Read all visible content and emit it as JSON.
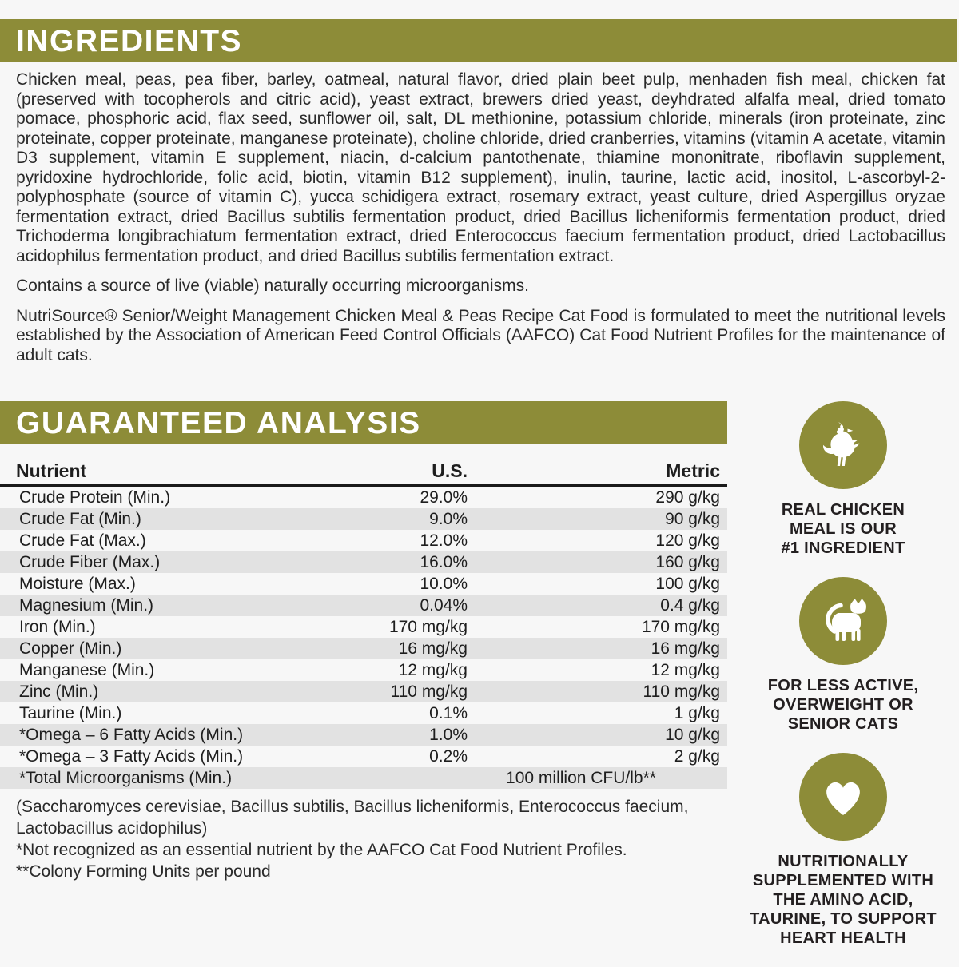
{
  "colors": {
    "accent_olive": "#8d8c38",
    "row_stripe": "#e2e2e2",
    "background": "#f7f7f7",
    "banner_text": "#ffffff",
    "body_text": "#2a2a2a"
  },
  "ingredients": {
    "title": "INGREDIENTS",
    "body": "Chicken meal, peas, pea fiber, barley, oatmeal, natural flavor, dried plain beet pulp, menhaden fish meal, chicken fat (preserved with tocopherols and citric acid), yeast extract, brewers dried yeast, deyhdrated alfalfa meal, dried tomato pomace, phosphoric acid, flax seed, sunflower oil, salt, DL methionine, potassium chloride, minerals (iron proteinate, zinc proteinate, copper proteinate, manganese proteinate), choline chloride, dried cranberries, vitamins (vitamin A acetate, vitamin D3 supplement, vitamin E supplement, niacin, d-calcium pantothenate, thiamine mononitrate, riboflavin supplement, pyridoxine hydrochloride, folic acid, biotin, vitamin B12 supplement), inulin, taurine, lactic acid, inositol, L-ascorbyl-2-polyphosphate (source of vitamin C), yucca schidigera extract, rosemary extract, yeast culture, dried Aspergillus oryzae fermentation extract, dried Bacillus subtilis fermentation product, dried Bacillus licheniformis fermentation product, dried Trichoderma longibrachiatum fermentation extract, dried Enterococcus faecium fermentation product, dried Lactobacillus acidophilus fermentation product, and dried Bacillus subtilis fermentation extract.",
    "contains": "Contains a source of live (viable) naturally occurring microorganisms.",
    "aafco": "NutriSource® Senior/Weight Management Chicken Meal & Peas Recipe Cat Food is formulated to meet the nutritional levels established by the Association of American Feed Control Officials (AAFCO) Cat Food Nutrient Profiles for the maintenance of adult cats."
  },
  "guaranteed_analysis": {
    "title": "GUARANTEED ANALYSIS",
    "columns": [
      "Nutrient",
      "U.S.",
      "Metric"
    ],
    "rows": [
      {
        "nutrient": "Crude Protein (Min.)",
        "us": "29.0%",
        "metric": "290 g/kg"
      },
      {
        "nutrient": "Crude Fat (Min.)",
        "us": "9.0%",
        "metric": "90 g/kg"
      },
      {
        "nutrient": "Crude Fat (Max.)",
        "us": "12.0%",
        "metric": "120 g/kg"
      },
      {
        "nutrient": "Crude Fiber (Max.)",
        "us": "16.0%",
        "metric": "160 g/kg"
      },
      {
        "nutrient": "Moisture (Max.)",
        "us": "10.0%",
        "metric": "100 g/kg"
      },
      {
        "nutrient": "Magnesium (Min.)",
        "us": "0.04%",
        "metric": "0.4 g/kg"
      },
      {
        "nutrient": "Iron (Min.)",
        "us": "170 mg/kg",
        "metric": "170 mg/kg"
      },
      {
        "nutrient": "Copper (Min.)",
        "us": "16 mg/kg",
        "metric": "16 mg/kg"
      },
      {
        "nutrient": "Manganese (Min.)",
        "us": "12 mg/kg",
        "metric": "12 mg/kg"
      },
      {
        "nutrient": "Zinc (Min.)",
        "us": "110 mg/kg",
        "metric": "110 mg/kg"
      },
      {
        "nutrient": "Taurine (Min.)",
        "us": "0.1%",
        "metric": "1 g/kg"
      },
      {
        "nutrient": "*Omega – 6 Fatty Acids (Min.)",
        "us": "1.0%",
        "metric": "10 g/kg"
      },
      {
        "nutrient": "*Omega – 3 Fatty Acids (Min.)",
        "us": "0.2%",
        "metric": "2 g/kg"
      },
      {
        "nutrient": "*Total Microorganisms (Min.)",
        "us": "100 million CFU/lb**",
        "metric": "",
        "span": true
      }
    ],
    "footnotes": [
      "(Saccharomyces cerevisiae, Bacillus subtilis, Bacillus licheniformis, Enterococcus faecium, Lactobacillus acidophilus)",
      "*Not recognized as an essential nutrient by the AAFCO Cat Food Nutrient Profiles.",
      "**Colony Forming Units per pound"
    ]
  },
  "sidebar": {
    "badges": [
      {
        "icon": "chicken-icon",
        "caption": "REAL CHICKEN\nMEAL IS OUR\n#1 INGREDIENT"
      },
      {
        "icon": "cat-icon",
        "caption": "FOR LESS ACTIVE,\nOVERWEIGHT OR\nSENIOR CATS"
      },
      {
        "icon": "heart-icon",
        "caption": "NUTRITIONALLY\nSUPPLEMENTED WITH\nTHE AMINO ACID,\nTAURINE, TO SUPPORT\nHEART HEALTH"
      }
    ]
  }
}
